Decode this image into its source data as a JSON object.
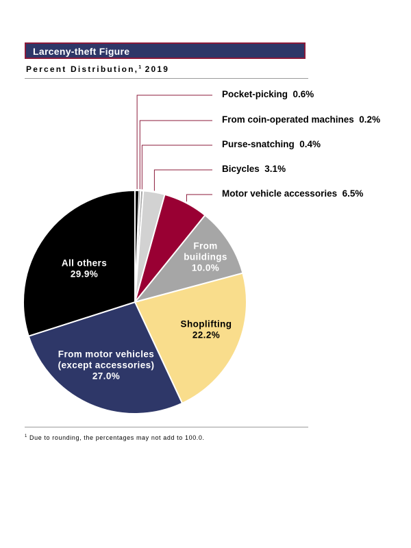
{
  "header": {
    "title": "Larceny-theft Figure",
    "subtitle_main": "Percent Distribution,",
    "subtitle_sup": "1",
    "subtitle_year": "2019"
  },
  "footnote": {
    "marker": "1",
    "text": "Due to rounding, the percentages may not add to 100.0."
  },
  "colors": {
    "title_bg": "#2e3768",
    "title_border": "#8b1a3a",
    "leader": "#8b1a3a"
  },
  "chart_data": {
    "type": "pie",
    "title": "Larceny-theft Figure",
    "subtitle": "Percent Distribution, 2019",
    "start_angle_deg": 0,
    "direction": "clockwise",
    "slices": [
      {
        "label": "Pocket-picking",
        "value": 0.6,
        "value_label": "0.6%",
        "color": "#000000",
        "label_mode": "callout"
      },
      {
        "label": "From coin-operated machines",
        "value": 0.2,
        "value_label": "0.2%",
        "color": "#6e6e6e",
        "label_mode": "callout"
      },
      {
        "label": "Purse-snatching",
        "value": 0.4,
        "value_label": "0.4%",
        "color": "#a6a6a6",
        "label_mode": "callout"
      },
      {
        "label": "Bicycles",
        "value": 3.1,
        "value_label": "3.1%",
        "color": "#d2d2d2",
        "label_mode": "callout"
      },
      {
        "label": "Motor vehicle accessories",
        "value": 6.5,
        "value_label": "6.5%",
        "color": "#990033",
        "label_mode": "callout"
      },
      {
        "label_lines": [
          "From",
          "buildings"
        ],
        "label": "From buildings",
        "value": 10.0,
        "value_label": "10.0%",
        "color": "#a6a6a6",
        "label_mode": "inside",
        "text_color": "#ffffff"
      },
      {
        "label_lines": [
          "Shoplifting"
        ],
        "label": "Shoplifting",
        "value": 22.2,
        "value_label": "22.2%",
        "color": "#f9dd8c",
        "label_mode": "inside",
        "text_color": "#000000"
      },
      {
        "label_lines": [
          "From motor vehicles",
          "(except accessories)"
        ],
        "label": "From motor vehicles (except accessories)",
        "value": 27.0,
        "value_label": "27.0%",
        "color": "#2e3768",
        "label_mode": "inside",
        "text_color": "#ffffff"
      },
      {
        "label_lines": [
          "All others"
        ],
        "label": "All others",
        "value": 29.9,
        "value_label": "29.9%",
        "color": "#000000",
        "label_mode": "inside",
        "text_color": "#ffffff"
      }
    ]
  }
}
